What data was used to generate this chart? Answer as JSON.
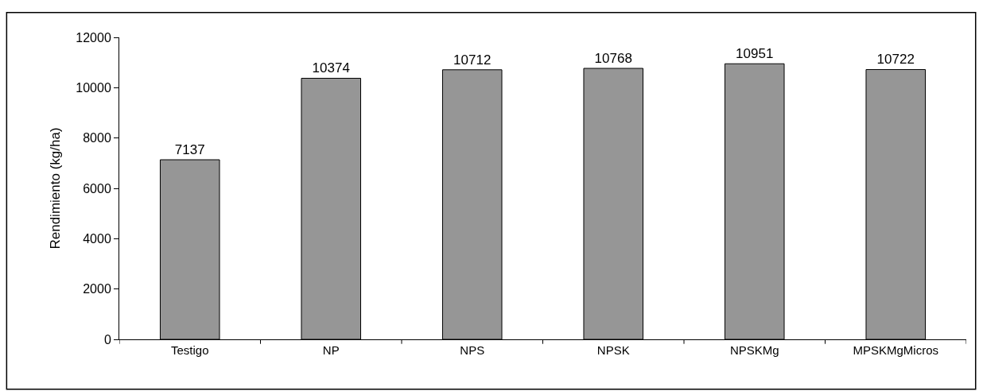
{
  "chart_data": {
    "type": "bar",
    "ylabel": "Rendimiento (kg/ha)",
    "categories": [
      "Testigo",
      "NP",
      "NPS",
      "NPSK",
      "NPSKMg",
      "MPSKMgMicros"
    ],
    "values": [
      7137,
      10374,
      10712,
      10768,
      10951,
      10722
    ],
    "color": "#969696",
    "ylim": [
      0,
      12000
    ],
    "yticks": [
      0,
      2000,
      4000,
      6000,
      8000,
      10000,
      12000
    ],
    "data_labels": true
  }
}
